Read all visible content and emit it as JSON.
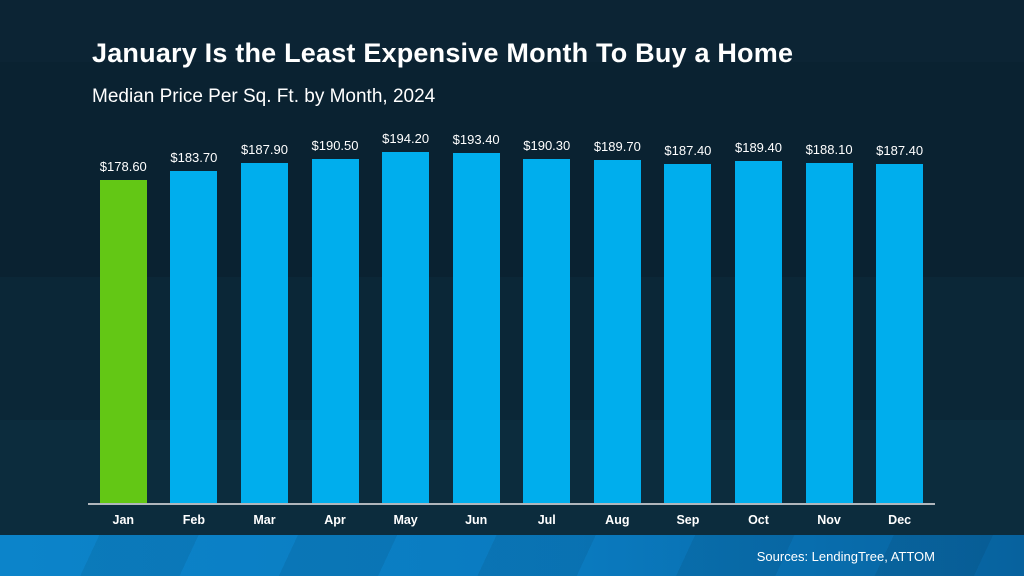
{
  "header": {
    "title": "January Is the Least Expensive Month To Buy a Home",
    "subtitle": "Median Price Per Sq. Ft. by Month, 2024"
  },
  "footer": {
    "sources": "Sources: LendingTree, ATTOM"
  },
  "chart_data": {
    "type": "bar",
    "title": "January Is the Least Expensive Month To Buy a Home",
    "subtitle": "Median Price Per Sq. Ft. by Month, 2024",
    "xlabel": "",
    "ylabel": "",
    "categories": [
      "Jan",
      "Feb",
      "Mar",
      "Apr",
      "May",
      "Jun",
      "Jul",
      "Aug",
      "Sep",
      "Oct",
      "Nov",
      "Dec"
    ],
    "values": [
      178.6,
      183.7,
      187.9,
      190.5,
      194.2,
      193.4,
      190.3,
      189.7,
      187.4,
      189.4,
      188.1,
      187.4
    ],
    "value_labels": [
      "$178.60",
      "$183.70",
      "$187.90",
      "$190.50",
      "$194.20",
      "$193.40",
      "$190.30",
      "$189.70",
      "$187.40",
      "$189.40",
      "$188.10",
      "$187.40"
    ],
    "value_prefix": "$",
    "baseline": 0,
    "grid": false,
    "legend": "none",
    "highlight_index": 0,
    "bar_color": "#00aeed",
    "highlight_color": "#63c715"
  },
  "colors": {
    "background_navy": "#0a2231",
    "bar_blue": "#00aeed",
    "bar_green": "#63c715",
    "axis_line": "#b0b6bc",
    "footer_blue_left": "#0c84ca",
    "footer_blue_right": "#07629e",
    "text": "#ffffff"
  }
}
